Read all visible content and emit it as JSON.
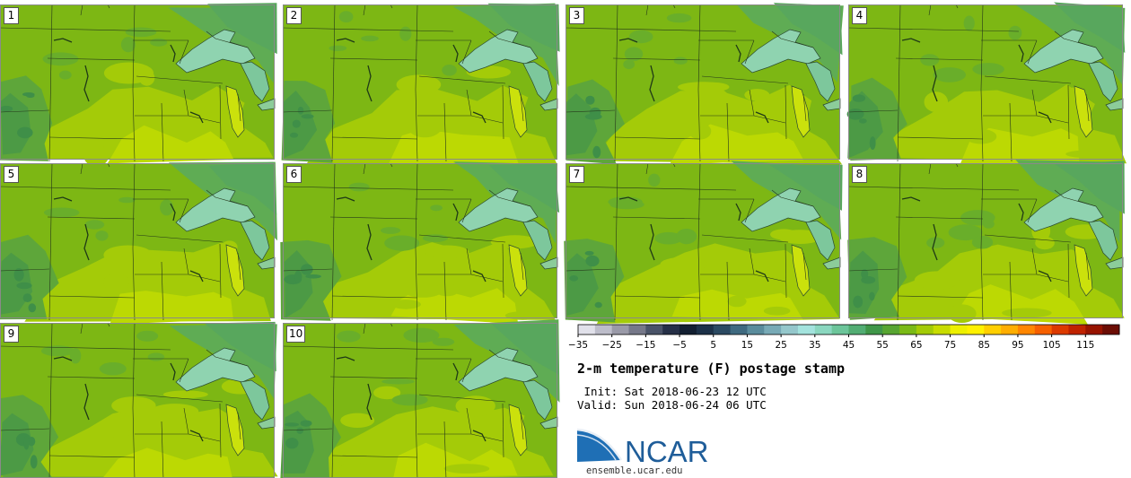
{
  "panels": [
    {
      "label": "1"
    },
    {
      "label": "2"
    },
    {
      "label": "3"
    },
    {
      "label": "4"
    },
    {
      "label": "5"
    },
    {
      "label": "6"
    },
    {
      "label": "7"
    },
    {
      "label": "8"
    },
    {
      "label": "9"
    },
    {
      "label": "10"
    }
  ],
  "colorbar": {
    "tick_labels": [
      "−35",
      "−25",
      "−15",
      "−5",
      "5",
      "15",
      "25",
      "35",
      "45",
      "55",
      "65",
      "75",
      "85",
      "95",
      "105",
      "115"
    ],
    "colors": [
      "#e1e1ea",
      "#bdbdca",
      "#9a9aa8",
      "#767889",
      "#4a5368",
      "#263047",
      "#121f31",
      "#1c3148",
      "#2b4a62",
      "#3f6a80",
      "#5a8c9c",
      "#78aab6",
      "#94c7cb",
      "#a3e3dd",
      "#8ad7bf",
      "#6cc59a",
      "#52ad73",
      "#3f9648",
      "#57a531",
      "#7aba16",
      "#a3cb06",
      "#c8dc00",
      "#edf000",
      "#fff100",
      "#ffcf00",
      "#ffae00",
      "#ff8600",
      "#f66000",
      "#dc3a00",
      "#bf2200",
      "#971300",
      "#6b0d04"
    ]
  },
  "title": "2-m temperature (F) postage stamp",
  "init": " Init: Sat 2018-06-23 12 UTC",
  "valid": "Valid: Sun 2018-06-24 06 UTC",
  "logo": {
    "text": "NCAR",
    "url": "ensemble.ucar.edu"
  }
}
